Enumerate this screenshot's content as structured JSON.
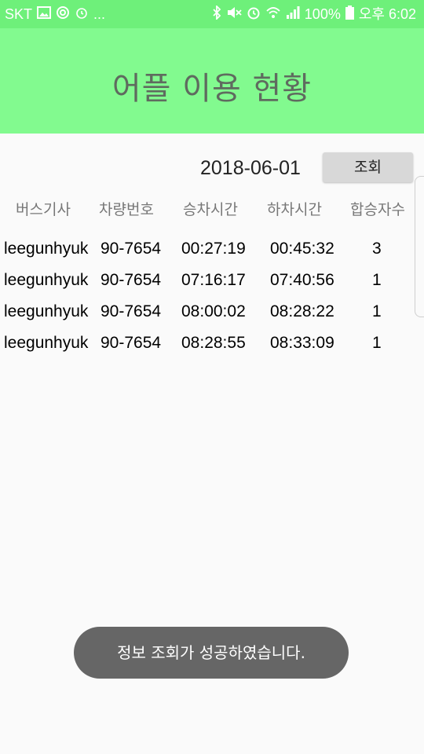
{
  "status_bar": {
    "carrier": "SKT",
    "more_indicator": "...",
    "battery_percent": "100%",
    "time": "오후 6:02",
    "icons_left": [
      "image-icon",
      "sync-icon",
      "alarm-icon"
    ],
    "icons_right": [
      "bluetooth-icon",
      "mute-icon",
      "alarm-icon",
      "wifi-icon",
      "signal-icon",
      "battery-icon"
    ]
  },
  "appbar": {
    "title": "어플 이용 현황",
    "color": "#82fa8f"
  },
  "query": {
    "date": "2018-06-01",
    "button_label": "조회"
  },
  "table": {
    "headers": [
      "버스기사",
      "차량번호",
      "승차시간",
      "하차시간",
      "합승자수"
    ],
    "rows": [
      [
        "leegunhyuk",
        "90-7654",
        "00:27:19",
        "00:45:32",
        "3"
      ],
      [
        "leegunhyuk",
        "90-7654",
        "07:16:17",
        "07:40:56",
        "1"
      ],
      [
        "leegunhyuk",
        "90-7654",
        "08:00:02",
        "08:28:22",
        "1"
      ],
      [
        "leegunhyuk",
        "90-7654",
        "08:28:55",
        "08:33:09",
        "1"
      ]
    ]
  },
  "toast": {
    "message": "정보 조회가 성공하였습니다."
  }
}
